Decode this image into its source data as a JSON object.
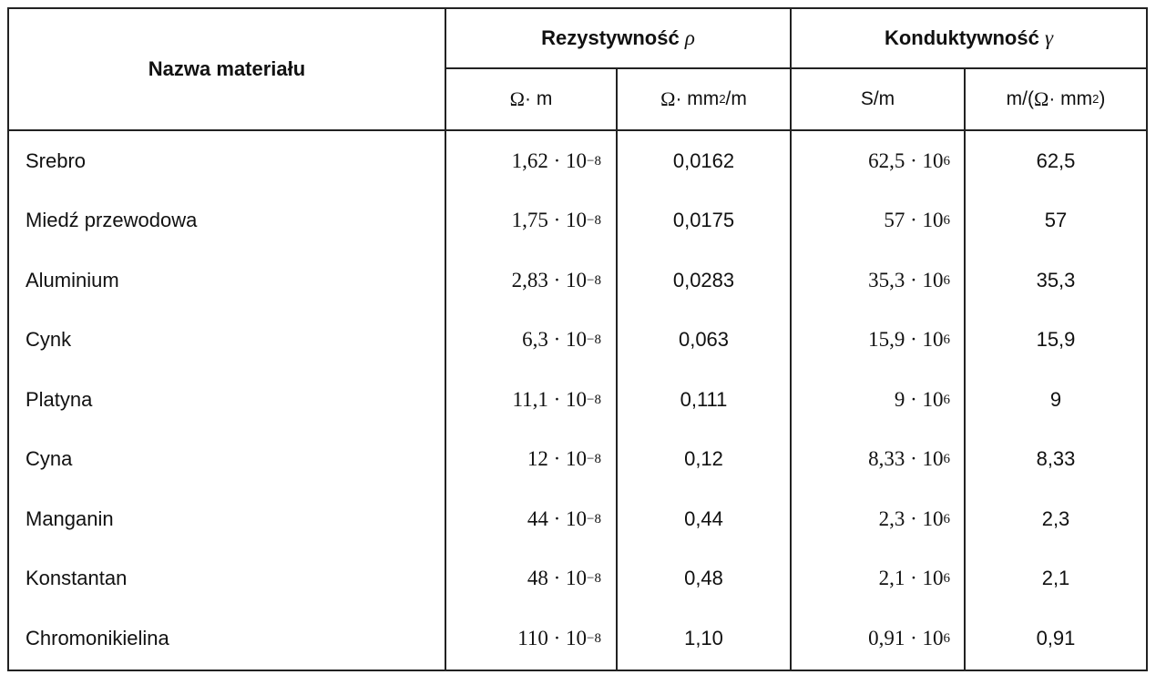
{
  "table": {
    "header": {
      "name": "Nazwa materiału",
      "resistivity_label": "Rezystywność",
      "resistivity_symbol": "ρ",
      "conductivity_label": "Konduktywność",
      "conductivity_symbol": "γ"
    },
    "units": {
      "r1": {
        "a": "Ω",
        "b": " · m"
      },
      "r2": {
        "a": "Ω",
        "b": " · mm",
        "sup": "2",
        "c": "/m"
      },
      "c1": {
        "a": "S/m"
      },
      "c2": {
        "a": "m/(",
        "b": "Ω",
        "c": " · mm",
        "sup": "2",
        "d": ")"
      }
    },
    "rows": [
      {
        "name": "Srebro",
        "rho_m": "1,62 · 10",
        "rho_exp": "−8",
        "rho_mm": "0,0162",
        "gamma_m": "62,5 · 10",
        "gamma_exp": "6",
        "gamma_mm": "62,5"
      },
      {
        "name": "Miedź przewodowa",
        "rho_m": "1,75 · 10",
        "rho_exp": "−8",
        "rho_mm": "0,0175",
        "gamma_m": "57 · 10",
        "gamma_exp": "6",
        "gamma_mm": "57"
      },
      {
        "name": "Aluminium",
        "rho_m": "2,83 · 10",
        "rho_exp": "−8",
        "rho_mm": "0,0283",
        "gamma_m": "35,3 · 10",
        "gamma_exp": "6",
        "gamma_mm": "35,3"
      },
      {
        "name": "Cynk",
        "rho_m": "6,3 · 10",
        "rho_exp": "−8",
        "rho_mm": "0,063",
        "gamma_m": "15,9 · 10",
        "gamma_exp": "6",
        "gamma_mm": "15,9"
      },
      {
        "name": "Platyna",
        "rho_m": "11,1 · 10",
        "rho_exp": "−8",
        "rho_mm": "0,111",
        "gamma_m": "9 · 10",
        "gamma_exp": "6",
        "gamma_mm": "9"
      },
      {
        "name": "Cyna",
        "rho_m": "12 · 10",
        "rho_exp": "−8",
        "rho_mm": "0,12",
        "gamma_m": "8,33 · 10",
        "gamma_exp": "6",
        "gamma_mm": "8,33"
      },
      {
        "name": "Manganin",
        "rho_m": "44 · 10",
        "rho_exp": "−8",
        "rho_mm": "0,44",
        "gamma_m": "2,3 · 10",
        "gamma_exp": "6",
        "gamma_mm": "2,3"
      },
      {
        "name": "Konstantan",
        "rho_m": "48 · 10",
        "rho_exp": "−8",
        "rho_mm": "0,48",
        "gamma_m": "2,1 · 10",
        "gamma_exp": "6",
        "gamma_mm": "2,1"
      },
      {
        "name": "Chromonikielina",
        "rho_m": "110 · 10",
        "rho_exp": "−8",
        "rho_mm": "1,10",
        "gamma_m": "0,91 · 10",
        "gamma_exp": "6",
        "gamma_mm": "0,91"
      }
    ]
  }
}
